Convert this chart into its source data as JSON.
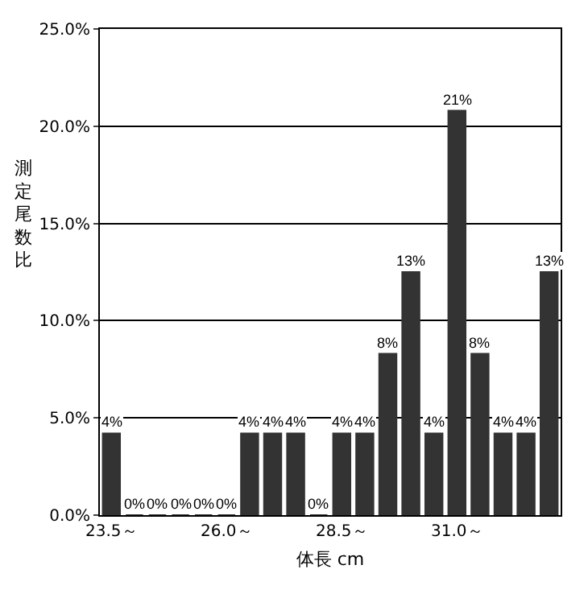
{
  "chart_data": {
    "type": "bar",
    "xlabel": "体長 cm",
    "ylabel": "測定尾数比",
    "categories": [
      "23.5～",
      null,
      null,
      null,
      null,
      "26.0～",
      null,
      null,
      null,
      null,
      "28.5～",
      null,
      null,
      null,
      null,
      "31.0～",
      null,
      null,
      null,
      null
    ],
    "values": [
      4.2,
      0,
      0,
      0,
      0,
      0,
      4.2,
      4.2,
      4.2,
      0,
      4.2,
      4.2,
      8.3,
      12.5,
      4.2,
      20.8,
      8.3,
      4.2,
      4.2,
      12.5
    ],
    "value_labels": [
      "4%",
      "0%",
      "0%",
      "0%",
      "0%",
      "0%",
      "4%",
      "4%",
      "4%",
      "0%",
      "4%",
      "4%",
      "8%",
      "13%",
      "4%",
      "21%",
      "8%",
      "4%",
      "4%",
      "13%"
    ],
    "color": "#333333",
    "ylim": [
      0,
      25
    ],
    "yticks": [
      {
        "value": 0,
        "label": "0.0%"
      },
      {
        "value": 5,
        "label": "5.0%"
      },
      {
        "value": 10,
        "label": "10.0%"
      },
      {
        "value": 15,
        "label": "15.0%"
      },
      {
        "value": 20,
        "label": "20.0%"
      },
      {
        "value": 25,
        "label": "25.0%"
      }
    ],
    "grid": "y"
  }
}
